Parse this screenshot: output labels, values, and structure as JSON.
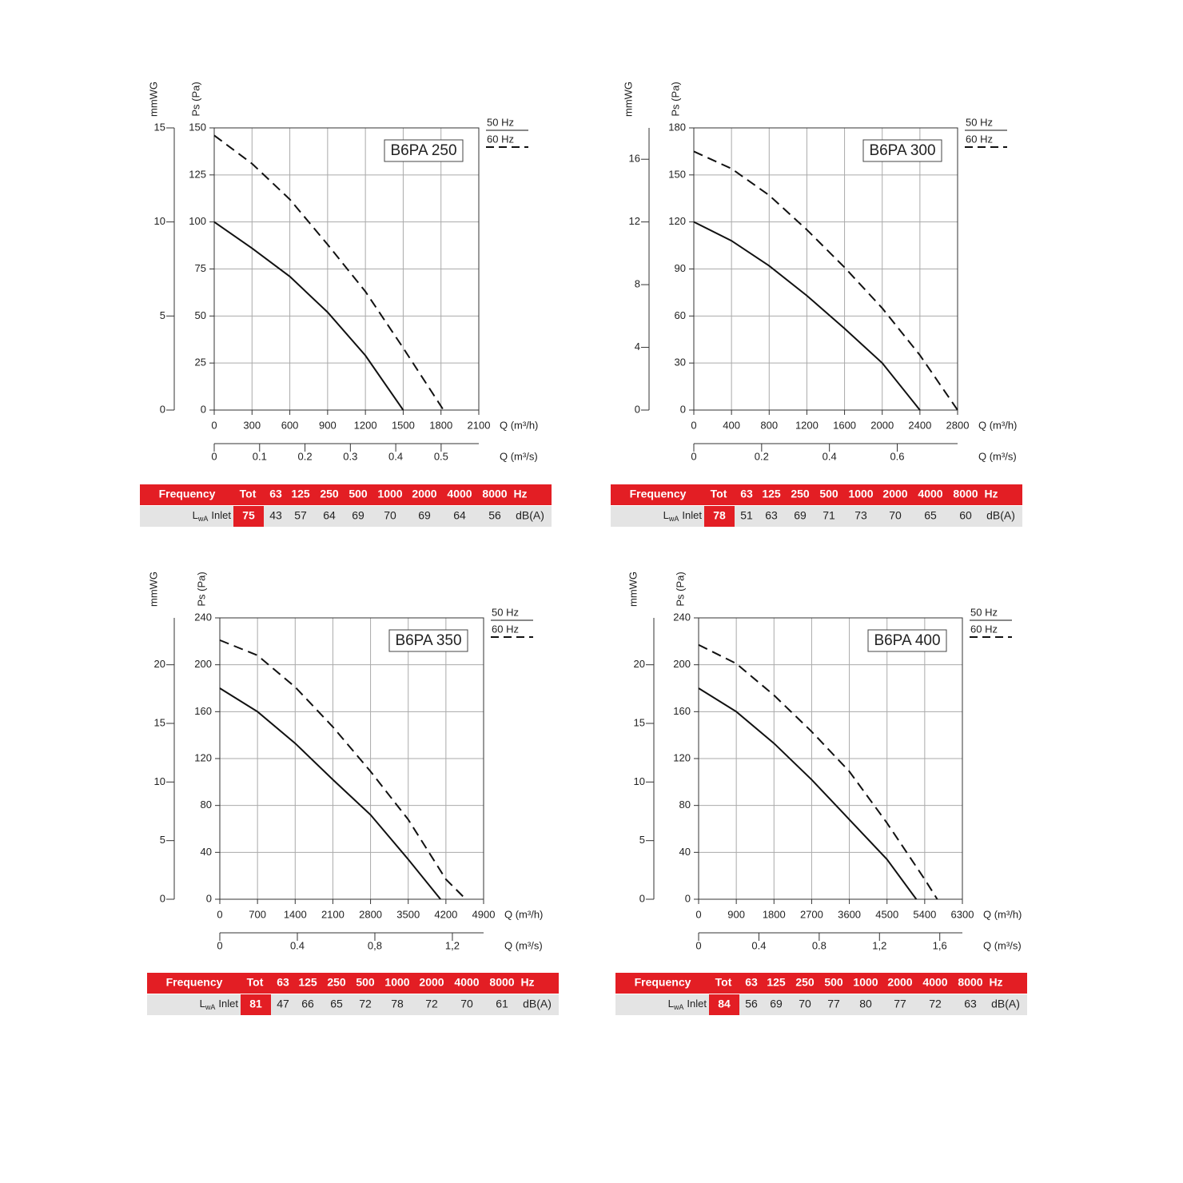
{
  "chart_data": [
    {
      "type": "line",
      "title": "B6PA 250",
      "x_label": "Q (m³/h)",
      "x2_label": "Q (m³/s)",
      "y_label": "Ps (Pa)",
      "y2_label": "mmWG",
      "xlim": [
        0,
        2100
      ],
      "xticks": [
        0,
        300,
        600,
        900,
        1200,
        1500,
        1800,
        2100
      ],
      "ylim": [
        0,
        150
      ],
      "yticks": [
        0,
        25,
        50,
        75,
        100,
        125,
        150
      ],
      "y2lim": [
        0,
        15
      ],
      "y2ticks": [
        0,
        5,
        10,
        15
      ],
      "x2lim": [
        0,
        0.583
      ],
      "x2ticks": [
        0,
        0.1,
        0.2,
        0.3,
        0.4,
        0.5
      ],
      "grid": true,
      "series": [
        {
          "name": "50 Hz",
          "color": "#111111",
          "line_style": "solid",
          "x": [
            0,
            300,
            600,
            900,
            1200,
            1500
          ],
          "values": [
            100,
            86,
            71,
            52,
            29,
            0
          ]
        },
        {
          "name": "60 Hz",
          "color": "#111111",
          "line_style": "dashed",
          "x": [
            0,
            300,
            600,
            900,
            1200,
            1500,
            1820
          ],
          "values": [
            146,
            131,
            112,
            88,
            63,
            33,
            0
          ]
        }
      ],
      "sound_table": {
        "header": [
          "Frequency",
          "Tot",
          "63",
          "125",
          "250",
          "500",
          "1000",
          "2000",
          "4000",
          "8000",
          "Hz"
        ],
        "row_label": "L",
        "row_label_sub": "wA",
        "row_name": "Inlet",
        "tot": 75,
        "values": [
          43,
          57,
          64,
          69,
          70,
          69,
          64,
          56
        ],
        "unit": "dB(A)"
      }
    },
    {
      "type": "line",
      "title": "B6PA 300",
      "x_label": "Q (m³/h)",
      "x2_label": "Q (m³/s)",
      "y_label": "Ps (Pa)",
      "y2_label": "mmWG",
      "xlim": [
        0,
        2800
      ],
      "xticks": [
        0,
        400,
        800,
        1200,
        1600,
        2000,
        2400,
        2800
      ],
      "ylim": [
        0,
        180
      ],
      "yticks": [
        0,
        30,
        60,
        90,
        120,
        150,
        180
      ],
      "y2lim": [
        0,
        18
      ],
      "y2ticks": [
        0,
        4,
        8,
        12,
        16
      ],
      "x2lim": [
        0,
        0.778
      ],
      "x2ticks": [
        0,
        0.2,
        0.4,
        0.6
      ],
      "grid": true,
      "series": [
        {
          "name": "50 Hz",
          "color": "#111111",
          "line_style": "solid",
          "x": [
            0,
            400,
            800,
            1200,
            1600,
            2000,
            2400
          ],
          "values": [
            120,
            108,
            92,
            73,
            52,
            30,
            0
          ]
        },
        {
          "name": "60 Hz",
          "color": "#111111",
          "line_style": "dashed",
          "x": [
            0,
            400,
            800,
            1200,
            1600,
            2000,
            2400,
            2800
          ],
          "values": [
            165,
            154,
            137,
            115,
            91,
            65,
            35,
            0
          ]
        }
      ],
      "sound_table": {
        "header": [
          "Frequency",
          "Tot",
          "63",
          "125",
          "250",
          "500",
          "1000",
          "2000",
          "4000",
          "8000",
          "Hz"
        ],
        "row_label": "L",
        "row_label_sub": "wA",
        "row_name": "Inlet",
        "tot": 78,
        "values": [
          51,
          63,
          69,
          71,
          73,
          70,
          65,
          60
        ],
        "unit": "dB(A)"
      }
    },
    {
      "type": "line",
      "title": "B6PA 350",
      "x_label": "Q (m³/h)",
      "x2_label": "Q (m³/s)",
      "y_label": "Ps (Pa)",
      "y2_label": "mmWG",
      "xlim": [
        0,
        4900
      ],
      "xticks": [
        0,
        700,
        1400,
        2100,
        2800,
        3500,
        4200,
        4900
      ],
      "ylim": [
        0,
        240
      ],
      "yticks": [
        0,
        40,
        80,
        120,
        160,
        200,
        240
      ],
      "y2lim": [
        0,
        24
      ],
      "y2ticks": [
        0,
        5,
        10,
        15,
        20
      ],
      "x2lim": [
        0,
        1.361
      ],
      "x2ticks": [
        0,
        0.4,
        {
          "value": 0.8,
          "label": "0,8"
        },
        {
          "value": 1.2,
          "label": "1,2"
        }
      ],
      "grid": true,
      "series": [
        {
          "name": "50 Hz",
          "color": "#111111",
          "line_style": "solid",
          "x": [
            0,
            700,
            1400,
            2100,
            2800,
            3500,
            4100
          ],
          "values": [
            180,
            160,
            133,
            102,
            72,
            34,
            0
          ]
        },
        {
          "name": "60 Hz",
          "color": "#111111",
          "line_style": "dashed",
          "x": [
            0,
            700,
            1400,
            2100,
            2800,
            3500,
            4200,
            4570
          ],
          "values": [
            221,
            208,
            181,
            147,
            109,
            68,
            17,
            0
          ]
        }
      ],
      "sound_table": {
        "header": [
          "Frequency",
          "Tot",
          "63",
          "125",
          "250",
          "500",
          "1000",
          "2000",
          "4000",
          "8000",
          "Hz"
        ],
        "row_label": "L",
        "row_label_sub": "wA",
        "row_name": "Inlet",
        "tot": 81,
        "values": [
          47,
          66,
          65,
          72,
          78,
          72,
          70,
          61
        ],
        "unit": "dB(A)"
      }
    },
    {
      "type": "line",
      "title": "B6PA 400",
      "x_label": "Q (m³/h)",
      "x2_label": "Q (m³/s)",
      "y_label": "Ps (Pa)",
      "y2_label": "mmWG",
      "xlim": [
        0,
        6300
      ],
      "xticks": [
        0,
        900,
        1800,
        2700,
        3600,
        4500,
        5400,
        6300
      ],
      "ylim": [
        0,
        240
      ],
      "yticks": [
        0,
        40,
        80,
        120,
        160,
        200,
        240
      ],
      "y2lim": [
        0,
        24
      ],
      "y2ticks": [
        0,
        5,
        10,
        15,
        20
      ],
      "x2lim": [
        0,
        1.75
      ],
      "x2ticks": [
        0,
        0.4,
        0.8,
        {
          "value": 1.2,
          "label": "1,2"
        },
        {
          "value": 1.6,
          "label": "1,6"
        }
      ],
      "grid": true,
      "series": [
        {
          "name": "50 Hz",
          "color": "#111111",
          "line_style": "solid",
          "x": [
            0,
            900,
            1800,
            2700,
            3600,
            4500,
            5200
          ],
          "values": [
            180,
            160,
            133,
            102,
            68,
            34,
            0
          ]
        },
        {
          "name": "60 Hz",
          "color": "#111111",
          "line_style": "dashed",
          "x": [
            0,
            900,
            1800,
            2700,
            3600,
            4500,
            5400,
            5700
          ],
          "values": [
            217,
            201,
            174,
            143,
            109,
            65,
            17,
            0
          ]
        }
      ],
      "sound_table": {
        "header": [
          "Frequency",
          "Tot",
          "63",
          "125",
          "250",
          "500",
          "1000",
          "2000",
          "4000",
          "8000",
          "Hz"
        ],
        "row_label": "L",
        "row_label_sub": "wA",
        "row_name": "Inlet",
        "tot": 84,
        "values": [
          56,
          69,
          70,
          77,
          80,
          77,
          72,
          63
        ],
        "unit": "dB(A)"
      }
    }
  ]
}
